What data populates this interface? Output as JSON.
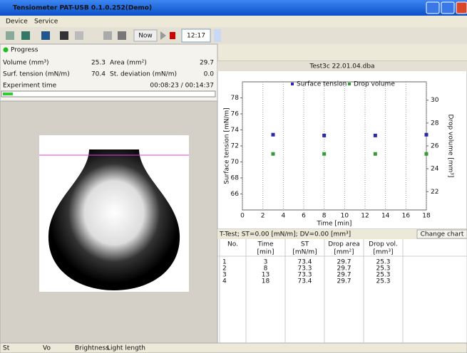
{
  "window": {
    "title": "Tensiometer PAT-USB   0.1.0.252(Demo)",
    "menu": [
      "Device",
      "Service"
    ],
    "toolbar": {
      "now": "Now",
      "time": "12:17"
    }
  },
  "progress": {
    "label": "Progress",
    "fields": [
      {
        "label": "Volume (mm³)",
        "value": "25.3"
      },
      {
        "label": "Area (mm²)",
        "value": "29.7"
      },
      {
        "label": "Surf. tension (mN/m)",
        "value": "70.4"
      },
      {
        "label": "St. deviation (mN/m)",
        "value": "0.0"
      }
    ],
    "experiment_time": {
      "label": "Experiment time",
      "value": "00:08:23 / 00:14:37"
    }
  },
  "chart_data": {
    "type": "scatter",
    "title": "Test3c 22.01.04.dba",
    "x_label": "Time [min]",
    "y_label": "Surface tension [mN/m]",
    "y2_label": "Drop volume [mm³]",
    "x": [
      3,
      8,
      13,
      18
    ],
    "series": [
      {
        "name": "Surface tension",
        "color": "#2a2aa8",
        "values": [
          73.4,
          73.3,
          73.3,
          73.4
        ]
      },
      {
        "name": "Drop volume",
        "color": "#3a9a3a",
        "values": [
          25.3,
          25.3,
          25.3,
          25.3
        ],
        "axis": "y2"
      }
    ],
    "xlim": [
      0,
      18
    ],
    "xticks": [
      0,
      2,
      4,
      6,
      8,
      10,
      12,
      14,
      16,
      18
    ],
    "ylim": [
      64,
      80
    ],
    "yticks": [
      66,
      68,
      70,
      72,
      74,
      76,
      78
    ],
    "y2lim": [
      20.4,
      31.6
    ],
    "y2ticks": [
      22,
      24,
      26,
      28,
      30
    ],
    "grid": true,
    "legend": "top"
  },
  "table": {
    "caption": "T-Test; ST=0.00 [mN/m]; DV=0.00 [mm³]",
    "button": "Change chart",
    "columns": [
      "No.",
      "Time",
      "ST",
      "Drop area",
      "Drop vol."
    ],
    "units": [
      "[min]",
      "[mN/m]",
      "[mm²]",
      "[mm³]"
    ],
    "rows": [
      [
        1,
        3,
        73.4,
        29.7,
        25.3
      ],
      [
        2,
        8,
        73.3,
        29.7,
        25.3
      ],
      [
        3,
        13,
        73.3,
        29.7,
        25.3
      ],
      [
        4,
        18,
        73.4,
        29.7,
        25.3
      ]
    ]
  },
  "status": [
    "St",
    "Vo",
    "Brightness",
    "Light length"
  ]
}
